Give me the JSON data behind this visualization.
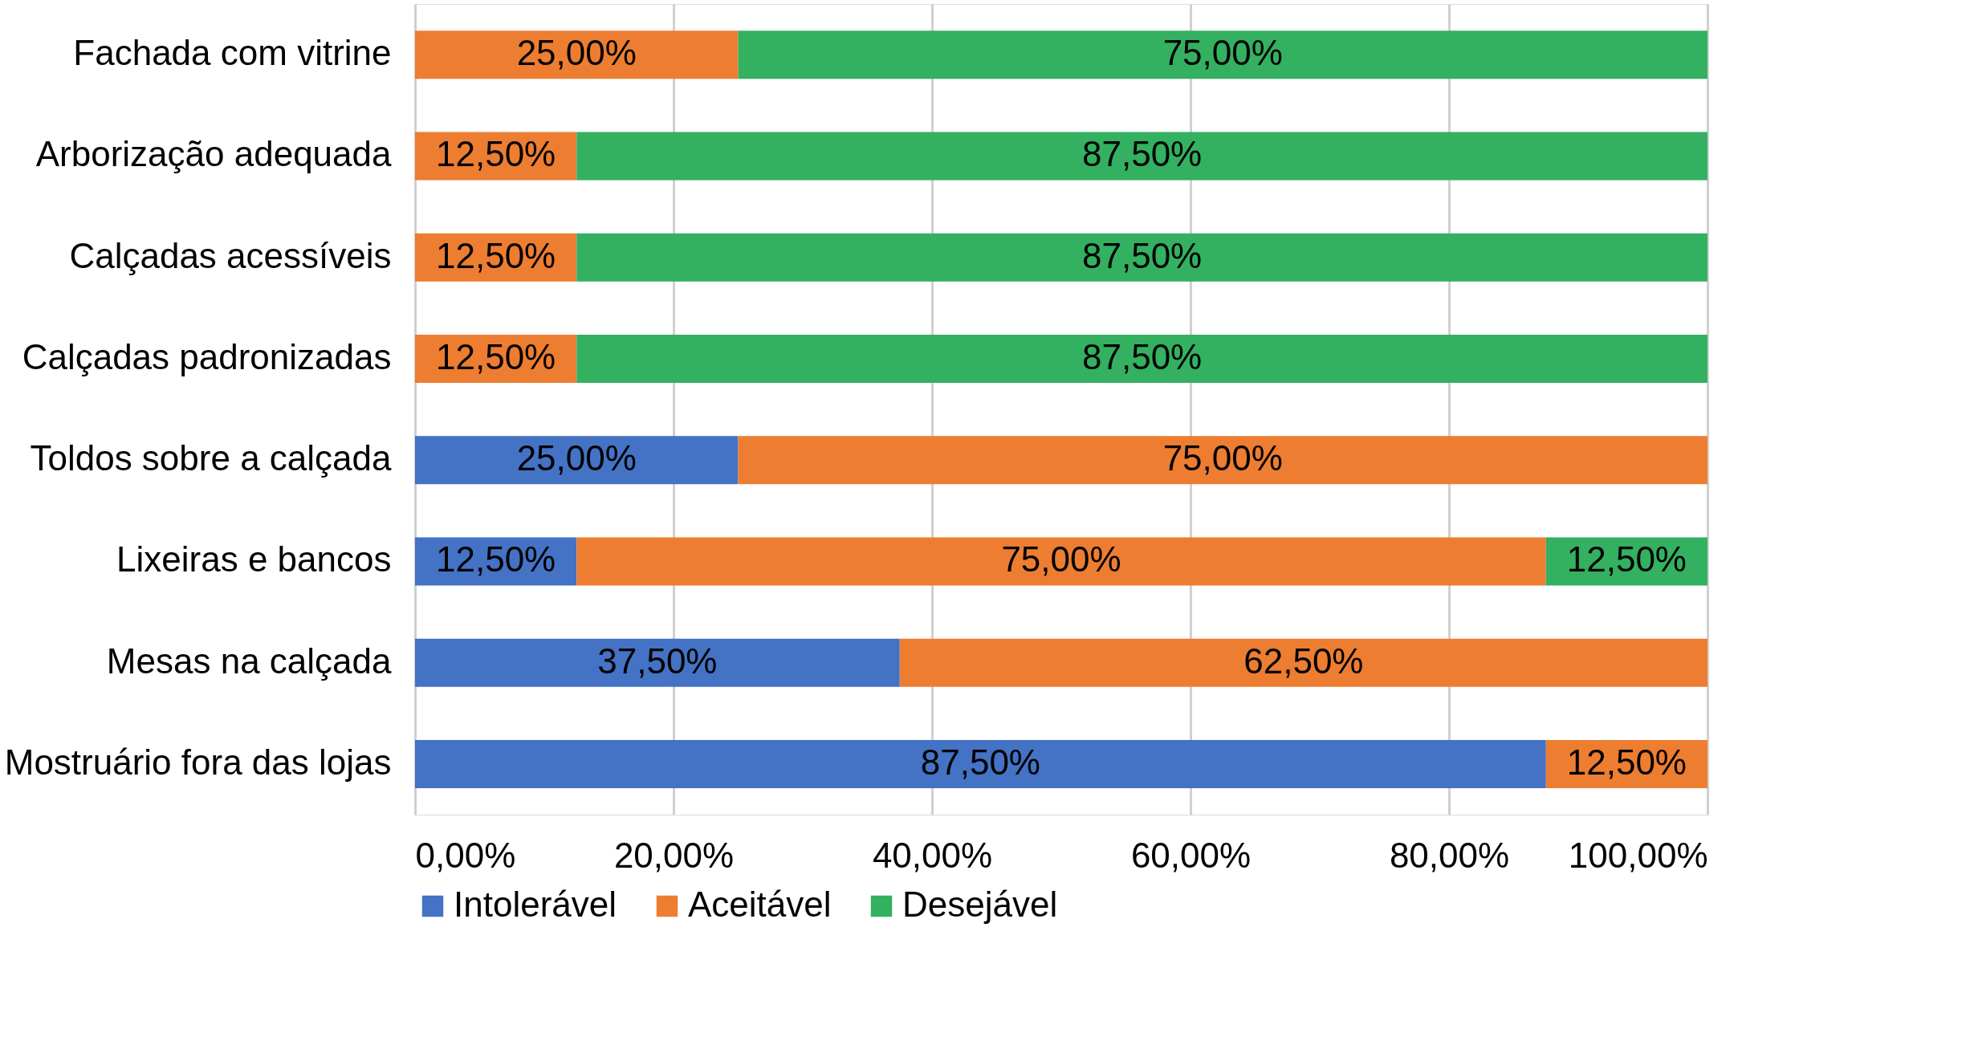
{
  "chart_data": {
    "type": "bar",
    "orientation": "horizontal",
    "stacked": true,
    "categories": [
      "Fachada com vitrine",
      "Arborização adequada",
      "Calçadas acessíveis",
      "Calçadas padronizadas",
      "Toldos sobre a calçada",
      "Lixeiras e bancos",
      "Mesas na calçada",
      "Mostruário fora das lojas"
    ],
    "series": [
      {
        "name": "Intolerável",
        "color": "#4472c4",
        "values": [
          null,
          null,
          null,
          null,
          25,
          12.5,
          37.5,
          87.5
        ],
        "value_labels": [
          null,
          null,
          null,
          null,
          "25,00%",
          "12,50%",
          "37,50%",
          "87,50%"
        ]
      },
      {
        "name": "Aceitável",
        "color": "#ed7d31",
        "values": [
          25,
          12.5,
          12.5,
          12.5,
          75,
          75,
          62.5,
          12.5
        ],
        "value_labels": [
          "25,00%",
          "12,50%",
          "12,50%",
          "12,50%",
          "75,00%",
          "75,00%",
          "62,50%",
          "12,50%"
        ]
      },
      {
        "name": "Desejável",
        "color": "#33b060",
        "values": [
          75,
          87.5,
          87.5,
          87.5,
          null,
          12.5,
          null,
          null
        ],
        "value_labels": [
          "75,00%",
          "87,50%",
          "87,50%",
          "87,50%",
          null,
          "12,50%",
          null,
          null
        ]
      }
    ],
    "xlim": [
      0,
      100
    ],
    "xticks": [
      {
        "value": 0,
        "label": "0,00%"
      },
      {
        "value": 20,
        "label": "20,00%"
      },
      {
        "value": 40,
        "label": "40,00%"
      },
      {
        "value": 60,
        "label": "60,00%"
      },
      {
        "value": 80,
        "label": "80,00%"
      },
      {
        "value": 100,
        "label": "100,00%"
      }
    ],
    "grid": "x",
    "legend": "bottom"
  }
}
